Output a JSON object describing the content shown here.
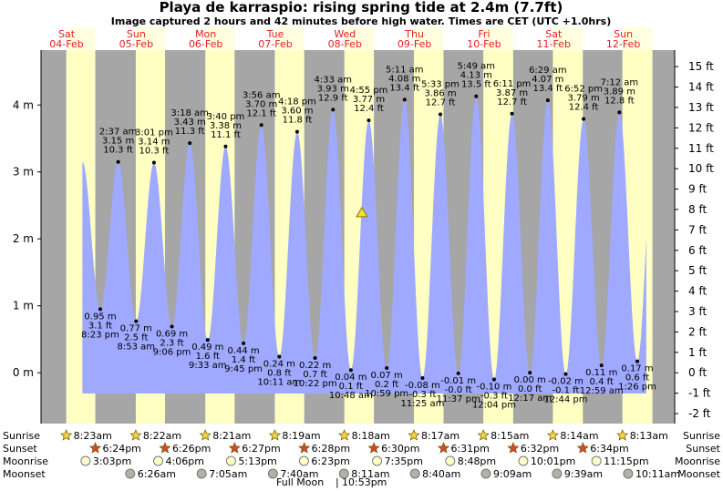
{
  "chart_data": {
    "type": "tide",
    "title": "Playa de karraspio: rising  spring tide at 2.4m (7.7ft)",
    "subtitle": "Image captured 2 hours and 42 minutes before high water. Times are CET (UTC +1.0hrs)",
    "current_level": 2.4,
    "days": [
      "Sat",
      "Sun",
      "Mon",
      "Tue",
      "Wed",
      "Thu",
      "Fri",
      "Sat",
      "Sun"
    ],
    "dates": [
      "04-Feb",
      "05-Feb",
      "06-Feb",
      "07-Feb",
      "08-Feb",
      "09-Feb",
      "10-Feb",
      "11-Feb",
      "12-Feb"
    ],
    "ylim": [
      -0.76,
      4.82
    ],
    "yticks": [
      {
        "value": 0,
        "label": "0 m"
      },
      {
        "value": 1,
        "label": "1 m"
      },
      {
        "value": 2,
        "label": "2 m"
      },
      {
        "value": 3,
        "label": "3 m"
      },
      {
        "value": 4,
        "label": "4 m"
      }
    ],
    "y2lim": [
      -2.49,
      15.81
    ],
    "y2ticks": [
      {
        "value": -2,
        "label": "-2 ft"
      },
      {
        "value": -1,
        "label": "-1 ft"
      },
      {
        "value": 0,
        "label": "0 ft"
      },
      {
        "value": 1,
        "label": "1 ft"
      },
      {
        "value": 2,
        "label": "2 ft"
      },
      {
        "value": 3,
        "label": "3 ft"
      },
      {
        "value": 4,
        "label": "4 ft"
      },
      {
        "value": 5,
        "label": "5 ft"
      },
      {
        "value": 6,
        "label": "6 ft"
      },
      {
        "value": 7,
        "label": "7 ft"
      },
      {
        "value": 8,
        "label": "8 ft"
      },
      {
        "value": 9,
        "label": "9 ft"
      },
      {
        "value": 10,
        "label": "10 ft"
      },
      {
        "value": 11,
        "label": "11 ft"
      },
      {
        "value": 12,
        "label": "12 ft"
      },
      {
        "value": 13,
        "label": "13 ft"
      },
      {
        "value": 14,
        "label": "14 ft"
      },
      {
        "value": 15,
        "label": "15 ft"
      }
    ],
    "tides": {
      "color": "#9fa9ff",
      "times": [
        "8:23 pm",
        "2:37 am",
        "8:53 am",
        "3:01 pm",
        "9:06 pm",
        "3:18 am",
        "9:33 am",
        "3:40 pm",
        "9:45 pm",
        "3:56 am",
        "10:11 am",
        "4:18 pm",
        "10:22 pm",
        "4:33 am",
        "10:48 am",
        "4:55 pm",
        "10:59 pm",
        "5:11 am",
        "11:25 am",
        "5:33 pm",
        "11:37 pm",
        "5:49 am",
        "12:04 pm",
        "6:11 pm",
        "12:17 am",
        "6:29 am",
        "12:44 pm",
        "6:52 pm",
        "12:59 am",
        "7:12 am",
        "1:26 pm"
      ],
      "values": [
        0.95,
        3.15,
        0.77,
        3.14,
        0.69,
        3.43,
        0.49,
        3.38,
        0.44,
        3.7,
        0.24,
        3.6,
        0.22,
        3.93,
        0.04,
        3.77,
        0.07,
        4.08,
        -0.08,
        3.86,
        -0.01,
        4.13,
        -0.1,
        3.87,
        0.0,
        4.07,
        -0.02,
        3.79,
        0.11,
        3.89,
        0.17
      ],
      "value_labels": [
        "0.95 m",
        "3.15 m",
        "0.77 m",
        "3.14 m",
        "0.69 m",
        "3.43 m",
        "0.49 m",
        "3.38 m",
        "0.44 m",
        "3.70 m",
        "0.24 m",
        "3.60 m",
        "0.22 m",
        "3.93 m",
        "0.04 m",
        "3.77 m",
        "0.07 m",
        "4.08 m",
        "-0.08 m",
        "3.86 m",
        "-0.01 m",
        "4.13 m",
        "-0.10 m",
        "3.87 m",
        "0.00 m",
        "4.07 m",
        "-0.02 m",
        "3.79 m",
        "0.11 m",
        "3.89 m",
        "0.17 m"
      ],
      "ft_labels": [
        "3.1 ft",
        "10.3 ft",
        "2.5 ft",
        "10.3 ft",
        "2.3 ft",
        "11.3 ft",
        "1.6 ft",
        "11.1 ft",
        "1.4 ft",
        "12.1 ft",
        "0.8 ft",
        "11.8 ft",
        "0.7 ft",
        "12.9 ft",
        "0.1 ft",
        "12.4 ft",
        "0.2 ft",
        "13.4 ft",
        "-0.3 ft",
        "12.7 ft",
        "-0.0 ft",
        "13.5 ft",
        "-0.3 ft",
        "12.7 ft",
        "0.0 ft",
        "13.4 ft",
        "-0.1 ft",
        "12.4 ft",
        "0.4 ft",
        "12.8 ft",
        "0.6 ft"
      ]
    },
    "rows": [
      {
        "label": "Sunrise",
        "times": [
          "8:23am",
          "8:22am",
          "8:21am",
          "8:19am",
          "8:18am",
          "8:17am",
          "8:15am",
          "8:14am",
          "8:13am"
        ]
      },
      {
        "label": "Sunset",
        "times": [
          "6:24pm",
          "6:26pm",
          "6:27pm",
          "6:28pm",
          "6:30pm",
          "6:31pm",
          "6:32pm",
          "6:34pm"
        ]
      },
      {
        "label": "Moonrise",
        "times": [
          "3:03pm",
          "4:06pm",
          "5:13pm",
          "6:23pm",
          "7:35pm",
          "8:48pm",
          "10:01pm",
          "11:15pm"
        ]
      },
      {
        "label": "Moonset",
        "times": [
          "6:26am",
          "7:05am",
          "7:40am",
          "8:11am",
          "8:40am",
          "9:09am",
          "9:39am",
          "10:11am"
        ]
      }
    ],
    "moon_phase": "Full Moon",
    "moon_phase_time": "10:53pm"
  }
}
